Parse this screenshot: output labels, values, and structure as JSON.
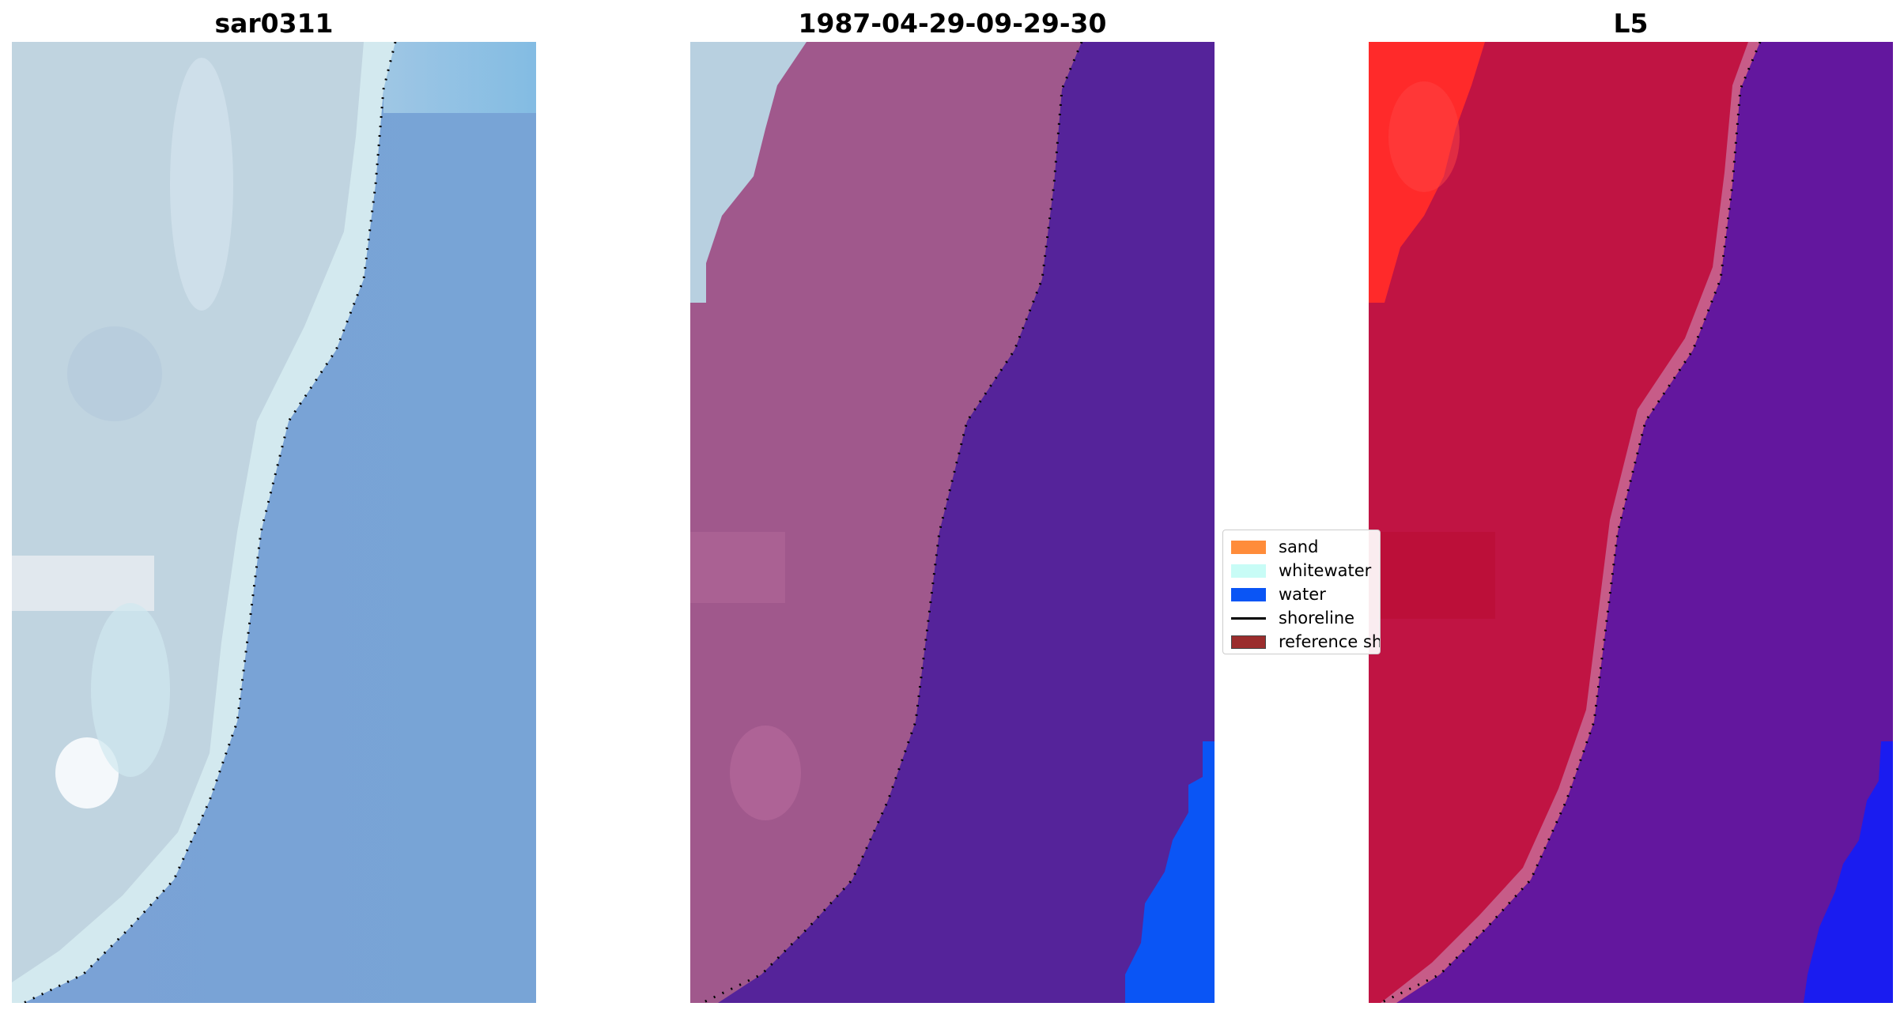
{
  "panels": [
    {
      "title": "sar0311",
      "image": "sar-rgb-satellite-image"
    },
    {
      "title": "1987-04-29-09-29-30",
      "image": "classified-image-overlay"
    },
    {
      "title": "L5",
      "image": "landsat5-index-image"
    }
  ],
  "legend": {
    "items": [
      {
        "label": "sand",
        "color": "#ff8c3a",
        "kind": "patch"
      },
      {
        "label": "whitewater",
        "color": "#c8fcf6",
        "kind": "patch"
      },
      {
        "label": "water",
        "color": "#0a55f5",
        "kind": "patch"
      },
      {
        "label": "shoreline",
        "color": "#000000",
        "kind": "line"
      },
      {
        "label": "reference shoreline buffer",
        "color": "#9b2d2d",
        "kind": "patch"
      }
    ]
  },
  "colors": {
    "sar_land": "#c0d2de",
    "sar_water": "#76a0d6",
    "class_land": "#a0588c",
    "class_water": "#55239a",
    "class_whitewater": "#b8d0e0",
    "class_water_blue": "#0a55f5",
    "l5_land": "#c01443",
    "l5_land_bright": "#ff2a2a",
    "l5_water": "#63179e",
    "l5_water_blue": "#1a1cf0"
  }
}
